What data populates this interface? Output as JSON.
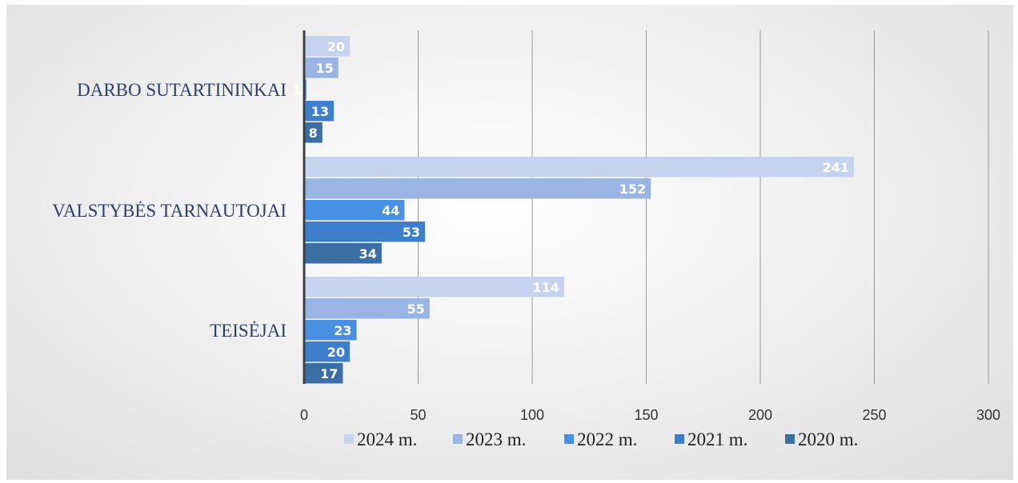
{
  "chart_data": {
    "type": "bar",
    "orientation": "horizontal",
    "categories": [
      "DARBO SUTARTININKAI",
      "VALSTYBĖS TARNAUTOJAI",
      "TEISĖJAI"
    ],
    "series": [
      {
        "name": "2024 m.",
        "values": [
          20,
          241,
          114
        ],
        "color": "#c5d3ef"
      },
      {
        "name": "2023 m.",
        "values": [
          15,
          152,
          55
        ],
        "color": "#9ab4e3"
      },
      {
        "name": "2022 m.",
        "values": [
          1,
          44,
          23
        ],
        "color": "#4a90e2"
      },
      {
        "name": "2021 m.",
        "values": [
          13,
          53,
          20
        ],
        "color": "#3d7fcc"
      },
      {
        "name": "2020 m.",
        "values": [
          8,
          34,
          17
        ],
        "color": "#3a6ea5"
      }
    ],
    "data_labels": true,
    "xlim": [
      0,
      300
    ],
    "xticks": [
      0,
      50,
      100,
      150,
      200,
      250,
      300
    ],
    "grid": "vertical",
    "legend_position": "bottom",
    "title": "",
    "xlabel": "",
    "ylabel": ""
  }
}
